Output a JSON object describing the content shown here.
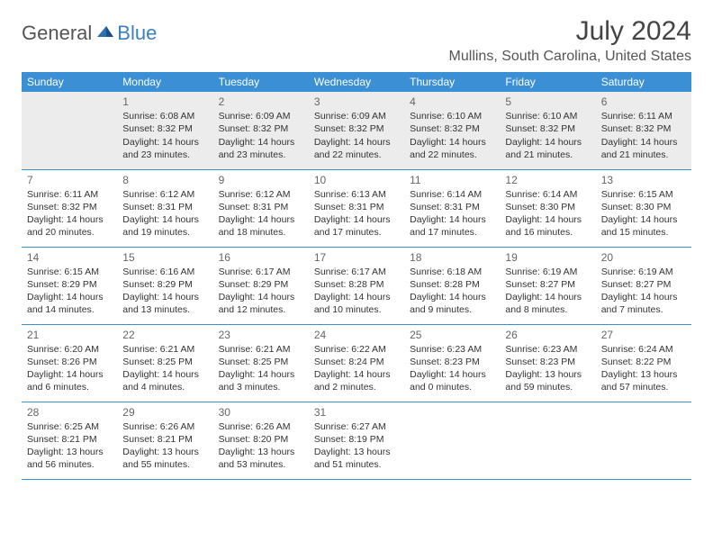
{
  "logo": {
    "word1": "General",
    "word2": "Blue"
  },
  "title": "July 2024",
  "location": "Mullins, South Carolina, United States",
  "colors": {
    "header_bg": "#3b8fd4",
    "header_text": "#ffffff",
    "rule": "#3b8fd4",
    "shade": "#ececec",
    "accent": "#3b7fc4",
    "body_text": "#333333"
  },
  "weekdays": [
    "Sunday",
    "Monday",
    "Tuesday",
    "Wednesday",
    "Thursday",
    "Friday",
    "Saturday"
  ],
  "weeks": [
    [
      null,
      {
        "n": "1",
        "sr": "Sunrise: 6:08 AM",
        "ss": "Sunset: 8:32 PM",
        "d1": "Daylight: 14 hours",
        "d2": "and 23 minutes."
      },
      {
        "n": "2",
        "sr": "Sunrise: 6:09 AM",
        "ss": "Sunset: 8:32 PM",
        "d1": "Daylight: 14 hours",
        "d2": "and 23 minutes."
      },
      {
        "n": "3",
        "sr": "Sunrise: 6:09 AM",
        "ss": "Sunset: 8:32 PM",
        "d1": "Daylight: 14 hours",
        "d2": "and 22 minutes."
      },
      {
        "n": "4",
        "sr": "Sunrise: 6:10 AM",
        "ss": "Sunset: 8:32 PM",
        "d1": "Daylight: 14 hours",
        "d2": "and 22 minutes."
      },
      {
        "n": "5",
        "sr": "Sunrise: 6:10 AM",
        "ss": "Sunset: 8:32 PM",
        "d1": "Daylight: 14 hours",
        "d2": "and 21 minutes."
      },
      {
        "n": "6",
        "sr": "Sunrise: 6:11 AM",
        "ss": "Sunset: 8:32 PM",
        "d1": "Daylight: 14 hours",
        "d2": "and 21 minutes."
      }
    ],
    [
      {
        "n": "7",
        "sr": "Sunrise: 6:11 AM",
        "ss": "Sunset: 8:32 PM",
        "d1": "Daylight: 14 hours",
        "d2": "and 20 minutes."
      },
      {
        "n": "8",
        "sr": "Sunrise: 6:12 AM",
        "ss": "Sunset: 8:31 PM",
        "d1": "Daylight: 14 hours",
        "d2": "and 19 minutes."
      },
      {
        "n": "9",
        "sr": "Sunrise: 6:12 AM",
        "ss": "Sunset: 8:31 PM",
        "d1": "Daylight: 14 hours",
        "d2": "and 18 minutes."
      },
      {
        "n": "10",
        "sr": "Sunrise: 6:13 AM",
        "ss": "Sunset: 8:31 PM",
        "d1": "Daylight: 14 hours",
        "d2": "and 17 minutes."
      },
      {
        "n": "11",
        "sr": "Sunrise: 6:14 AM",
        "ss": "Sunset: 8:31 PM",
        "d1": "Daylight: 14 hours",
        "d2": "and 17 minutes."
      },
      {
        "n": "12",
        "sr": "Sunrise: 6:14 AM",
        "ss": "Sunset: 8:30 PM",
        "d1": "Daylight: 14 hours",
        "d2": "and 16 minutes."
      },
      {
        "n": "13",
        "sr": "Sunrise: 6:15 AM",
        "ss": "Sunset: 8:30 PM",
        "d1": "Daylight: 14 hours",
        "d2": "and 15 minutes."
      }
    ],
    [
      {
        "n": "14",
        "sr": "Sunrise: 6:15 AM",
        "ss": "Sunset: 8:29 PM",
        "d1": "Daylight: 14 hours",
        "d2": "and 14 minutes."
      },
      {
        "n": "15",
        "sr": "Sunrise: 6:16 AM",
        "ss": "Sunset: 8:29 PM",
        "d1": "Daylight: 14 hours",
        "d2": "and 13 minutes."
      },
      {
        "n": "16",
        "sr": "Sunrise: 6:17 AM",
        "ss": "Sunset: 8:29 PM",
        "d1": "Daylight: 14 hours",
        "d2": "and 12 minutes."
      },
      {
        "n": "17",
        "sr": "Sunrise: 6:17 AM",
        "ss": "Sunset: 8:28 PM",
        "d1": "Daylight: 14 hours",
        "d2": "and 10 minutes."
      },
      {
        "n": "18",
        "sr": "Sunrise: 6:18 AM",
        "ss": "Sunset: 8:28 PM",
        "d1": "Daylight: 14 hours",
        "d2": "and 9 minutes."
      },
      {
        "n": "19",
        "sr": "Sunrise: 6:19 AM",
        "ss": "Sunset: 8:27 PM",
        "d1": "Daylight: 14 hours",
        "d2": "and 8 minutes."
      },
      {
        "n": "20",
        "sr": "Sunrise: 6:19 AM",
        "ss": "Sunset: 8:27 PM",
        "d1": "Daylight: 14 hours",
        "d2": "and 7 minutes."
      }
    ],
    [
      {
        "n": "21",
        "sr": "Sunrise: 6:20 AM",
        "ss": "Sunset: 8:26 PM",
        "d1": "Daylight: 14 hours",
        "d2": "and 6 minutes."
      },
      {
        "n": "22",
        "sr": "Sunrise: 6:21 AM",
        "ss": "Sunset: 8:25 PM",
        "d1": "Daylight: 14 hours",
        "d2": "and 4 minutes."
      },
      {
        "n": "23",
        "sr": "Sunrise: 6:21 AM",
        "ss": "Sunset: 8:25 PM",
        "d1": "Daylight: 14 hours",
        "d2": "and 3 minutes."
      },
      {
        "n": "24",
        "sr": "Sunrise: 6:22 AM",
        "ss": "Sunset: 8:24 PM",
        "d1": "Daylight: 14 hours",
        "d2": "and 2 minutes."
      },
      {
        "n": "25",
        "sr": "Sunrise: 6:23 AM",
        "ss": "Sunset: 8:23 PM",
        "d1": "Daylight: 14 hours",
        "d2": "and 0 minutes."
      },
      {
        "n": "26",
        "sr": "Sunrise: 6:23 AM",
        "ss": "Sunset: 8:23 PM",
        "d1": "Daylight: 13 hours",
        "d2": "and 59 minutes."
      },
      {
        "n": "27",
        "sr": "Sunrise: 6:24 AM",
        "ss": "Sunset: 8:22 PM",
        "d1": "Daylight: 13 hours",
        "d2": "and 57 minutes."
      }
    ],
    [
      {
        "n": "28",
        "sr": "Sunrise: 6:25 AM",
        "ss": "Sunset: 8:21 PM",
        "d1": "Daylight: 13 hours",
        "d2": "and 56 minutes."
      },
      {
        "n": "29",
        "sr": "Sunrise: 6:26 AM",
        "ss": "Sunset: 8:21 PM",
        "d1": "Daylight: 13 hours",
        "d2": "and 55 minutes."
      },
      {
        "n": "30",
        "sr": "Sunrise: 6:26 AM",
        "ss": "Sunset: 8:20 PM",
        "d1": "Daylight: 13 hours",
        "d2": "and 53 minutes."
      },
      {
        "n": "31",
        "sr": "Sunrise: 6:27 AM",
        "ss": "Sunset: 8:19 PM",
        "d1": "Daylight: 13 hours",
        "d2": "and 51 minutes."
      },
      null,
      null,
      null
    ]
  ]
}
